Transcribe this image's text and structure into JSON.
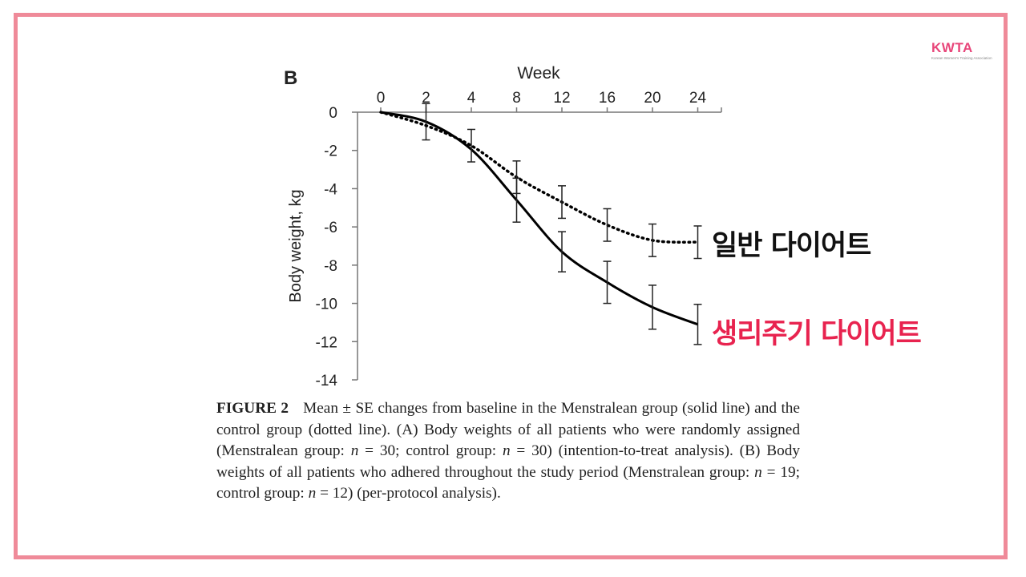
{
  "logo": {
    "text": "KWTA",
    "subtitle": "Korean Women's Training Association"
  },
  "panel_letter": "B",
  "annotations": {
    "normal_diet": "일반 다이어트",
    "cycle_diet": "생리주기 다이어트"
  },
  "caption": {
    "label": "FIGURE 2",
    "t1": "Mean ± SE changes from baseline in the Menstralean group (solid line) and the control group (dotted line). (A) Body weights of all patients who were randomly assigned (Menstralean group: ",
    "n": "n",
    "t2": " = 30; control group: ",
    "t3": " = 30) (intention-to-treat analysis). (B) Body weights of all patients who adhered throughout the study period (Menstralean group: ",
    "t4": " = 19; control group: ",
    "t5": " = 12) (per-protocol analysis)."
  },
  "chart_data": {
    "type": "line",
    "xlabel": "Week",
    "ylabel": "Body weight, kg",
    "x": [
      "0",
      "2",
      "4",
      "8",
      "12",
      "16",
      "20",
      "24"
    ],
    "ylim": [
      -14,
      0
    ],
    "yticks": [
      "0",
      "-2",
      "-4",
      "-6",
      "-8",
      "-10",
      "-12",
      "-14"
    ],
    "ytick_values": [
      0,
      -2,
      -4,
      -6,
      -8,
      -10,
      -12,
      -14
    ],
    "grid": false,
    "series": [
      {
        "style": "solid",
        "values": [
          0,
          -0.5,
          -1.95,
          -4.6,
          -7.3,
          -8.9,
          -10.2,
          -11.1
        ],
        "error": [
          0,
          0.95,
          0.0,
          1.15,
          1.05,
          1.1,
          1.15,
          1.05
        ]
      },
      {
        "style": "dotted",
        "values": [
          0,
          -0.7,
          -1.75,
          -3.4,
          -4.7,
          -5.9,
          -6.7,
          -6.8
        ],
        "error": [
          0,
          0.0,
          0.85,
          0.85,
          0.85,
          0.85,
          0.85,
          0.85
        ]
      }
    ],
    "colors": {
      "solid": "#000000",
      "dotted": "#000000"
    }
  }
}
